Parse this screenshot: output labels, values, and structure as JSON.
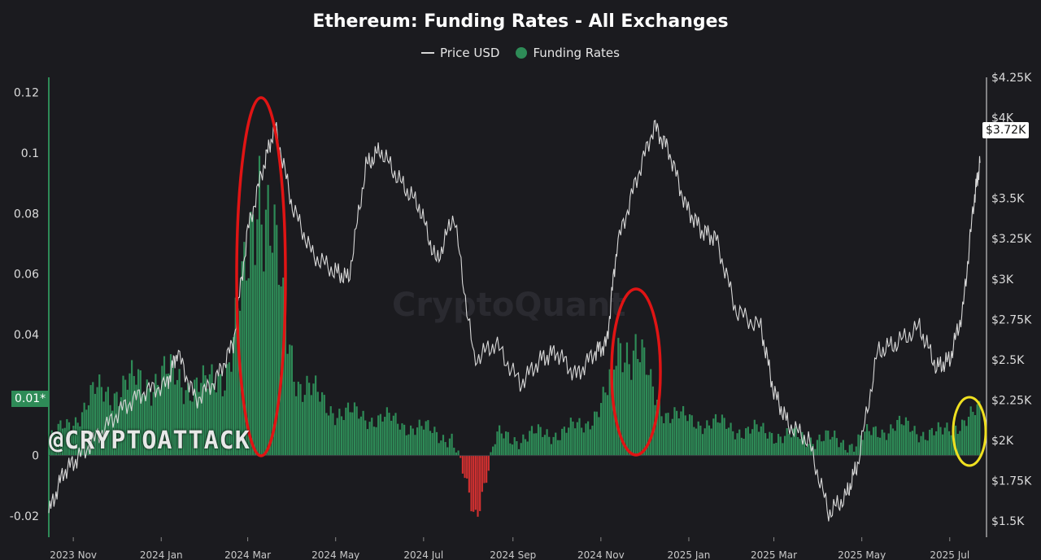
{
  "title": "Ethereum: Funding Rates - All Exchanges",
  "legend": {
    "price_label": "Price USD",
    "funding_label": "Funding Rates"
  },
  "watermark": "@CRYPTOATTACK",
  "background_watermark": "CryptoQuant",
  "current_price_label": "$3.72K",
  "current_funding_label": "0.01*",
  "colors": {
    "background": "#1b1b1f",
    "funding": "#2e8b57",
    "negative": "#d03030",
    "price": "#d8d8d8",
    "highlight_red": "#e01414",
    "highlight_yellow": "#f0e020"
  },
  "chart_data": {
    "type": "bar",
    "title": "Ethereum: Funding Rates - All Exchanges",
    "left_axis": {
      "ticks": [
        0.12,
        0.1,
        0.08,
        0.06,
        0.04,
        0,
        -0.02
      ],
      "ylim": [
        -0.027,
        0.125
      ]
    },
    "right_axis": {
      "ticks": [
        "$4.25K",
        "$4K",
        "$3.5K",
        "$3.25K",
        "$3K",
        "$2.75K",
        "$2.5K",
        "$2.25K",
        "$2K",
        "$1.75K",
        "$1.5K"
      ],
      "ylim": [
        1400,
        4250
      ]
    },
    "x_ticks": [
      "2023 Nov",
      "2024 Jan",
      "2024 Mar",
      "2024 May",
      "2024 Jul",
      "2024 Sep",
      "2024 Nov",
      "2025 Jan",
      "2025 Mar",
      "2025 May",
      "2025 Jul"
    ],
    "date_range": [
      "2023-10-15",
      "2025-07-22"
    ],
    "series": [
      {
        "name": "Funding Rates",
        "kind": "bar",
        "x": [
          "2023-10-15",
          "2023-11-01",
          "2023-11-15",
          "2023-12-01",
          "2023-12-15",
          "2024-01-01",
          "2024-01-15",
          "2024-02-01",
          "2024-02-15",
          "2024-03-01",
          "2024-03-08",
          "2024-03-15",
          "2024-03-25",
          "2024-04-05",
          "2024-04-20",
          "2024-05-05",
          "2024-05-20",
          "2024-06-05",
          "2024-06-20",
          "2024-07-05",
          "2024-07-20",
          "2024-08-05",
          "2024-08-20",
          "2024-09-05",
          "2024-09-20",
          "2024-10-05",
          "2024-10-20",
          "2024-11-05",
          "2024-11-15",
          "2024-11-25",
          "2024-12-05",
          "2024-12-15",
          "2024-12-28",
          "2025-01-10",
          "2025-01-25",
          "2025-02-10",
          "2025-02-25",
          "2025-03-10",
          "2025-03-25",
          "2025-04-10",
          "2025-04-25",
          "2025-05-10",
          "2025-05-25",
          "2025-06-10",
          "2025-06-25",
          "2025-07-10",
          "2025-07-22"
        ],
        "values": [
          0.005,
          0.012,
          0.02,
          0.022,
          0.024,
          0.026,
          0.025,
          0.022,
          0.03,
          0.06,
          0.1,
          0.08,
          0.045,
          0.025,
          0.018,
          0.014,
          0.013,
          0.012,
          0.01,
          0.008,
          0.006,
          -0.02,
          0.006,
          0.006,
          0.007,
          0.008,
          0.01,
          0.02,
          0.038,
          0.036,
          0.022,
          0.015,
          0.012,
          0.011,
          0.01,
          0.008,
          0.008,
          0.006,
          0.006,
          0.005,
          0.004,
          0.008,
          0.01,
          0.008,
          0.007,
          0.012,
          0.014
        ]
      },
      {
        "name": "Price USD",
        "kind": "line",
        "x": [
          "2023-10-15",
          "2023-10-25",
          "2023-11-05",
          "2023-11-20",
          "2023-12-05",
          "2023-12-20",
          "2024-01-05",
          "2024-01-12",
          "2024-01-25",
          "2024-02-08",
          "2024-02-20",
          "2024-03-01",
          "2024-03-12",
          "2024-03-20",
          "2024-04-01",
          "2024-04-15",
          "2024-04-30",
          "2024-05-10",
          "2024-05-22",
          "2024-06-01",
          "2024-06-15",
          "2024-06-28",
          "2024-07-10",
          "2024-07-22",
          "2024-08-05",
          "2024-08-20",
          "2024-09-06",
          "2024-09-20",
          "2024-10-01",
          "2024-10-15",
          "2024-10-28",
          "2024-11-05",
          "2024-11-12",
          "2024-11-25",
          "2024-12-08",
          "2024-12-18",
          "2024-12-30",
          "2025-01-10",
          "2025-01-20",
          "2025-02-03",
          "2025-02-20",
          "2025-03-01",
          "2025-03-11",
          "2025-03-25",
          "2025-04-08",
          "2025-04-20",
          "2025-04-28",
          "2025-05-12",
          "2025-05-25",
          "2025-06-10",
          "2025-06-22",
          "2025-07-01",
          "2025-07-10",
          "2025-07-18",
          "2025-07-22"
        ],
        "values": [
          1550,
          1800,
          1900,
          2050,
          2200,
          2300,
          2350,
          2550,
          2250,
          2380,
          2600,
          3300,
          3700,
          3950,
          3450,
          3150,
          3050,
          3000,
          3700,
          3800,
          3600,
          3450,
          3100,
          3400,
          2500,
          2600,
          2350,
          2500,
          2550,
          2400,
          2550,
          2600,
          3200,
          3600,
          3950,
          3800,
          3450,
          3300,
          3250,
          2800,
          2700,
          2300,
          2100,
          2000,
          1550,
          1650,
          1850,
          2550,
          2600,
          2700,
          2450,
          2500,
          2800,
          3500,
          3720
        ]
      }
    ]
  }
}
